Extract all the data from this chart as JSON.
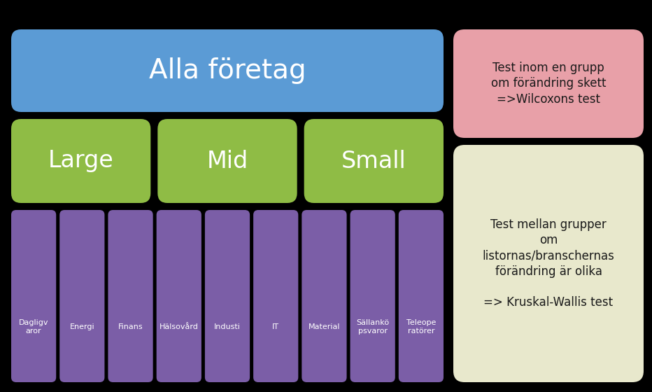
{
  "background_color": "#000000",
  "alla_foretag": {
    "text": "Alla företag",
    "color": "#5b9bd5",
    "text_color": "#ffffff",
    "fontsize": 28
  },
  "size_boxes": [
    {
      "text": "Large",
      "color": "#8fbc45",
      "text_color": "#ffffff",
      "fontsize": 24
    },
    {
      "text": "Mid",
      "color": "#8fbc45",
      "text_color": "#ffffff",
      "fontsize": 24
    },
    {
      "text": "Small",
      "color": "#8fbc45",
      "text_color": "#ffffff",
      "fontsize": 24
    }
  ],
  "sector_boxes": [
    {
      "text": "Dagligv\naror",
      "color": "#7b5ea7",
      "text_color": "#ffffff"
    },
    {
      "text": "Energi",
      "color": "#7b5ea7",
      "text_color": "#ffffff"
    },
    {
      "text": "Finans",
      "color": "#7b5ea7",
      "text_color": "#ffffff"
    },
    {
      "text": "Hälsovård",
      "color": "#7b5ea7",
      "text_color": "#ffffff"
    },
    {
      "text": "Industi",
      "color": "#7b5ea7",
      "text_color": "#ffffff"
    },
    {
      "text": "IT",
      "color": "#7b5ea7",
      "text_color": "#ffffff"
    },
    {
      "text": "Material",
      "color": "#7b5ea7",
      "text_color": "#ffffff"
    },
    {
      "text": "Sällankö\npsvaror",
      "color": "#7b5ea7",
      "text_color": "#ffffff"
    },
    {
      "text": "Teleope\nratörer",
      "color": "#7b5ea7",
      "text_color": "#ffffff"
    }
  ],
  "wilcoxon_box": {
    "text": "Test inom en grupp\nom förändring skett\n=>Wilcoxons test",
    "color": "#e8a0a8",
    "text_color": "#1a1a1a",
    "fontsize": 12
  },
  "kruskal_box": {
    "text": "Test mellan grupper\nom\nlistornas/branschernas\nförändring är olika\n\n=> Kruskal-Wallis test",
    "color": "#e8e8cc",
    "text_color": "#1a1a1a",
    "fontsize": 12
  },
  "fig_width": 9.32,
  "fig_height": 5.6,
  "dpi": 100
}
